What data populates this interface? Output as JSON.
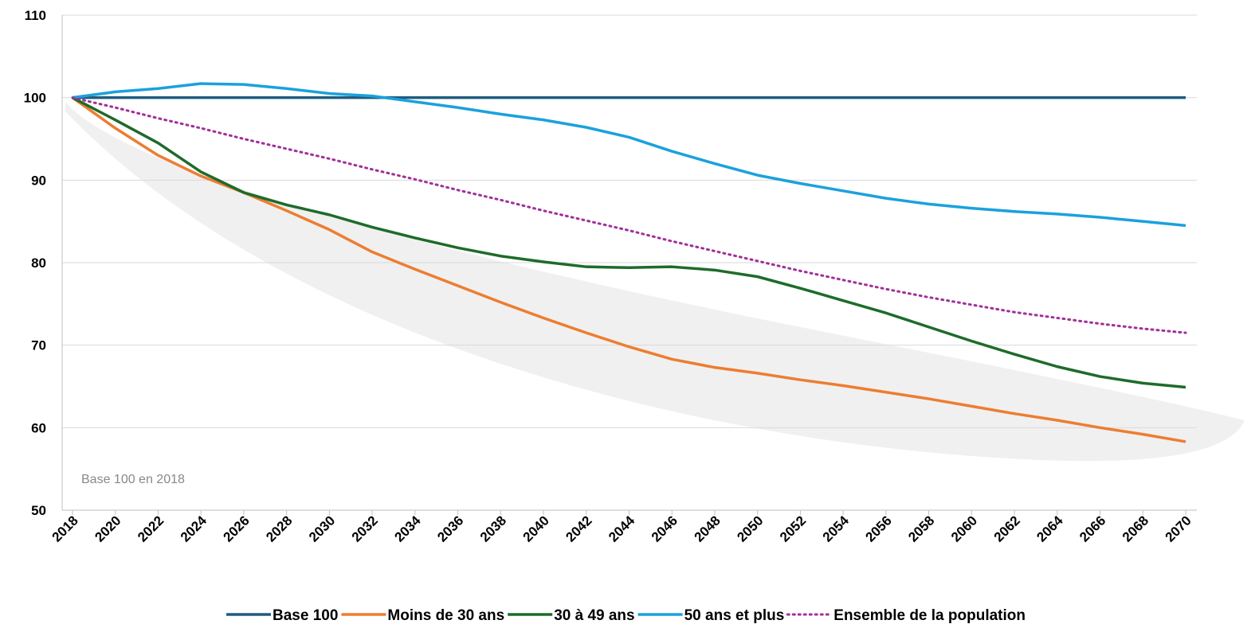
{
  "chart_data": {
    "type": "line",
    "annotation": "Base 100 en 2018",
    "x": [
      2018,
      2020,
      2022,
      2024,
      2026,
      2028,
      2030,
      2032,
      2034,
      2036,
      2038,
      2040,
      2042,
      2044,
      2046,
      2048,
      2050,
      2052,
      2054,
      2056,
      2058,
      2060,
      2062,
      2064,
      2066,
      2068,
      2070
    ],
    "xlim": [
      2018,
      2070
    ],
    "xticks": [
      2018,
      2020,
      2022,
      2024,
      2026,
      2028,
      2030,
      2032,
      2034,
      2036,
      2038,
      2040,
      2042,
      2044,
      2046,
      2048,
      2050,
      2052,
      2054,
      2056,
      2058,
      2060,
      2062,
      2064,
      2066,
      2068,
      2070
    ],
    "ylim": [
      50,
      110
    ],
    "yticks": [
      50,
      60,
      70,
      80,
      90,
      100,
      110
    ],
    "grid": true,
    "legend": "bottom",
    "series": [
      {
        "name": "Base 100",
        "color": "#1f5c7f",
        "dash": false,
        "values": [
          100,
          100,
          100,
          100,
          100,
          100,
          100,
          100,
          100,
          100,
          100,
          100,
          100,
          100,
          100,
          100,
          100,
          100,
          100,
          100,
          100,
          100,
          100,
          100,
          100,
          100,
          100
        ]
      },
      {
        "name": "Moins de 30 ans",
        "color": "#ed7d31",
        "dash": false,
        "values": [
          100,
          96.3,
          93,
          90.5,
          88.5,
          86.3,
          84,
          81.3,
          79.2,
          77.2,
          75.2,
          73.3,
          71.5,
          69.8,
          68.3,
          67.3,
          66.6,
          65.8,
          65.1,
          64.3,
          63.5,
          62.6,
          61.7,
          60.9,
          60,
          59.2,
          58.3
        ]
      },
      {
        "name": "30 à 49 ans",
        "color": "#1e6b2a",
        "dash": false,
        "values": [
          100,
          97.3,
          94.5,
          91,
          88.5,
          87,
          85.8,
          84.3,
          83,
          81.8,
          80.8,
          80.1,
          79.5,
          79.4,
          79.5,
          79.1,
          78.3,
          76.9,
          75.4,
          73.9,
          72.2,
          70.5,
          68.9,
          67.4,
          66.2,
          65.4,
          64.9
        ]
      },
      {
        "name": "50 ans et plus",
        "color": "#1ba1dc",
        "dash": false,
        "values": [
          100,
          100.7,
          101.1,
          101.7,
          101.6,
          101.1,
          100.5,
          100.2,
          99.5,
          98.8,
          98,
          97.3,
          96.4,
          95.2,
          93.5,
          92,
          90.6,
          89.6,
          88.7,
          87.8,
          87.1,
          86.6,
          86.2,
          85.9,
          85.5,
          85,
          84.5
        ]
      },
      {
        "name": "Ensemble de la population",
        "color": "#a1309a",
        "dash": true,
        "values": [
          100,
          98.8,
          97.5,
          96.3,
          95,
          93.8,
          92.6,
          91.3,
          90.1,
          88.8,
          87.6,
          86.3,
          85.1,
          83.9,
          82.6,
          81.4,
          80.2,
          79,
          77.9,
          76.8,
          75.8,
          74.9,
          74,
          73.3,
          72.6,
          72,
          71.5
        ]
      }
    ]
  }
}
